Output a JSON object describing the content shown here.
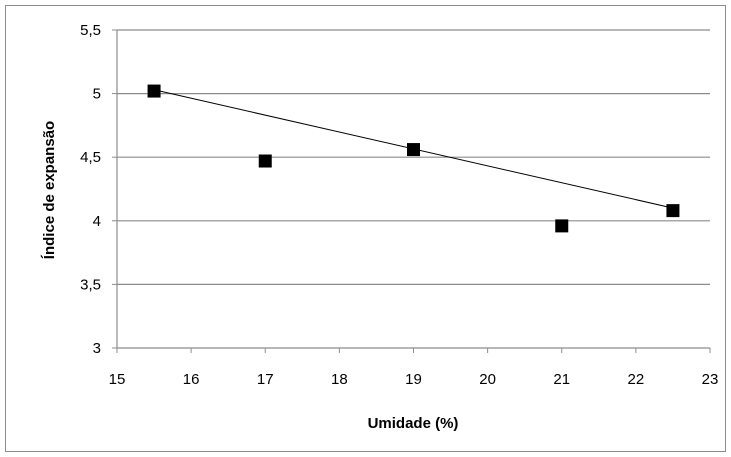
{
  "chart_data": {
    "type": "scatter",
    "title": "",
    "xlabel": "Umidade (%)",
    "ylabel": "Índice de expansão",
    "xlim": [
      15,
      23
    ],
    "ylim": [
      3,
      5.5
    ],
    "x_ticks": [
      "15",
      "16",
      "17",
      "18",
      "19",
      "20",
      "21",
      "22",
      "23"
    ],
    "y_ticks": [
      "3",
      "3,5",
      "4",
      "4,5",
      "5",
      "5,5"
    ],
    "grid": "horizontal",
    "legend": "none",
    "series": [
      {
        "marker": "square",
        "color": "#000000",
        "points": [
          {
            "x": 15.5,
            "y": 5.02
          },
          {
            "x": 17.0,
            "y": 4.47
          },
          {
            "x": 19.0,
            "y": 4.56
          },
          {
            "x": 21.0,
            "y": 3.96
          },
          {
            "x": 22.5,
            "y": 4.08
          }
        ]
      }
    ],
    "trendline": {
      "type": "linear",
      "color": "#000000",
      "points": [
        {
          "x": 15.5,
          "y": 5.03
        },
        {
          "x": 22.5,
          "y": 4.1
        }
      ]
    }
  }
}
